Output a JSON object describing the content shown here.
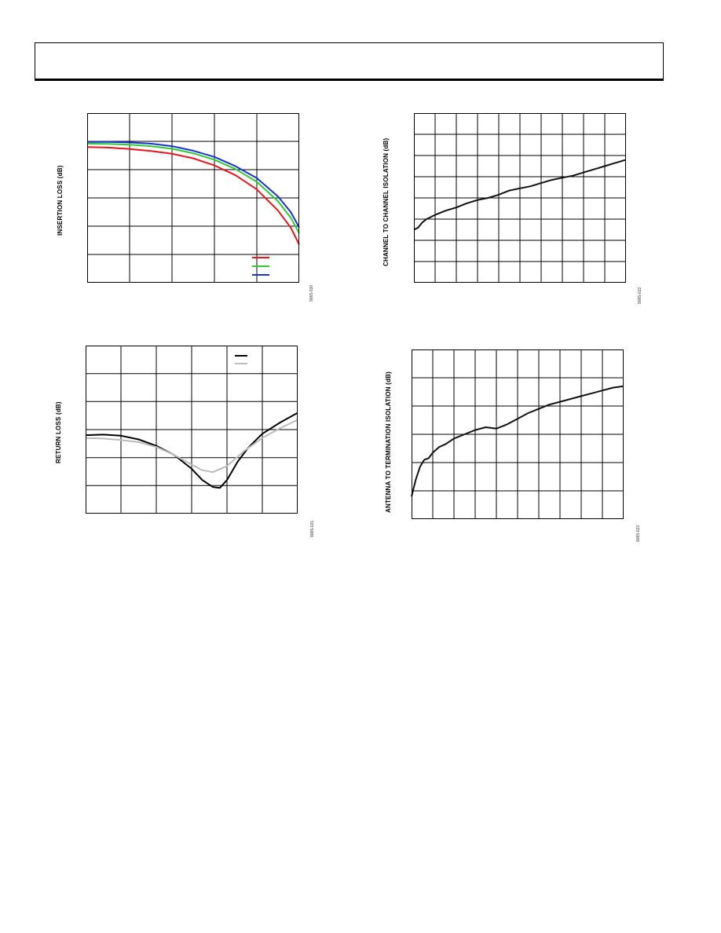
{
  "header": {},
  "chart_data": [
    {
      "type": "line",
      "id": "c1",
      "ylabel": "INSERTION LOSS (dB)",
      "figure_id": "9065-020",
      "xlim": [
        0,
        5
      ],
      "ylim": [
        0,
        6
      ],
      "grid": {
        "x_divisions": 5,
        "y_divisions": 6
      },
      "legend": {
        "placement": "bottom-right",
        "swatches_only": true
      },
      "series": [
        {
          "color": "#e8141c",
          "width": 2,
          "x": [
            0,
            0.5,
            1,
            1.5,
            2,
            2.5,
            3,
            3.5,
            4,
            4.5,
            4.8,
            5
          ],
          "y": [
            4.8,
            4.78,
            4.73,
            4.66,
            4.56,
            4.4,
            4.15,
            3.8,
            3.3,
            2.55,
            1.95,
            1.35
          ]
        },
        {
          "color": "#2ecc2e",
          "width": 2,
          "x": [
            0,
            0.5,
            1,
            1.5,
            2,
            2.5,
            3,
            3.5,
            4,
            4.5,
            4.8,
            5
          ],
          "y": [
            4.92,
            4.91,
            4.88,
            4.83,
            4.74,
            4.58,
            4.35,
            4.02,
            3.57,
            2.88,
            2.3,
            1.75
          ]
        },
        {
          "color": "#1a32d0",
          "width": 2,
          "x": [
            0,
            0.5,
            1,
            1.5,
            2,
            2.5,
            3,
            3.5,
            4,
            4.5,
            4.8,
            5
          ],
          "y": [
            4.98,
            4.98,
            4.96,
            4.92,
            4.83,
            4.67,
            4.45,
            4.12,
            3.7,
            3.05,
            2.5,
            1.95
          ]
        }
      ]
    },
    {
      "type": "line",
      "id": "c2",
      "ylabel": "CHANNEL TO CHANNEL ISOLATION (dB)",
      "figure_id": "9065-022",
      "xlim": [
        0,
        10
      ],
      "ylim": [
        0,
        8
      ],
      "grid": {
        "x_divisions": 10,
        "y_divisions": 8
      },
      "series": [
        {
          "color": "#111111",
          "width": 2,
          "x": [
            0,
            0.2,
            0.4,
            0.6,
            1,
            1.5,
            2,
            2.5,
            3,
            3.5,
            4,
            4.5,
            5,
            5.5,
            6,
            6.5,
            7,
            7.5,
            8,
            8.5,
            9,
            9.5,
            10
          ],
          "y": [
            2.5,
            2.6,
            2.85,
            3.0,
            3.2,
            3.4,
            3.55,
            3.75,
            3.9,
            4.0,
            4.15,
            4.35,
            4.45,
            4.55,
            4.7,
            4.85,
            4.95,
            5.05,
            5.2,
            5.35,
            5.5,
            5.65,
            5.8
          ]
        }
      ]
    },
    {
      "type": "line",
      "id": "c3",
      "ylabel": "RETURN LOSS (dB)",
      "figure_id": "9065-021",
      "xlim": [
        0,
        6
      ],
      "ylim": [
        0,
        6
      ],
      "grid": {
        "x_divisions": 6,
        "y_divisions": 6
      },
      "legend": {
        "placement": "top-right",
        "swatches_only": true
      },
      "series": [
        {
          "color": "#000000",
          "width": 2,
          "x": [
            0,
            0.5,
            1,
            1.5,
            2,
            2.5,
            3,
            3.3,
            3.6,
            3.8,
            4,
            4.3,
            4.6,
            5,
            5.5,
            6
          ],
          "y": [
            2.8,
            2.82,
            2.78,
            2.65,
            2.42,
            2.1,
            1.6,
            1.2,
            0.95,
            0.92,
            1.2,
            1.85,
            2.35,
            2.85,
            3.25,
            3.6
          ]
        },
        {
          "color": "#bbbbbb",
          "width": 2,
          "x": [
            0,
            0.5,
            1,
            1.5,
            2,
            2.5,
            3,
            3.3,
            3.6,
            4,
            4.5,
            5,
            5.5,
            6
          ],
          "y": [
            2.7,
            2.68,
            2.63,
            2.55,
            2.38,
            2.1,
            1.75,
            1.55,
            1.48,
            1.7,
            2.25,
            2.7,
            3.05,
            3.35
          ]
        }
      ]
    },
    {
      "type": "line",
      "id": "c4",
      "ylabel": "ANTENNA TO TERMINATION ISOLATION (dB)",
      "figure_id": "9065-023",
      "xlim": [
        0,
        10
      ],
      "ylim": [
        0,
        6
      ],
      "grid": {
        "x_divisions": 10,
        "y_divisions": 6
      },
      "series": [
        {
          "color": "#111111",
          "width": 2,
          "x": [
            0,
            0.2,
            0.4,
            0.6,
            0.8,
            1,
            1.3,
            1.6,
            2,
            2.5,
            3,
            3.5,
            4,
            4.5,
            5,
            5.5,
            6,
            6.5,
            7,
            7.5,
            8,
            8.5,
            9,
            9.5,
            10
          ],
          "y": [
            0.8,
            1.4,
            1.85,
            2.1,
            2.15,
            2.35,
            2.55,
            2.65,
            2.85,
            3.0,
            3.15,
            3.25,
            3.2,
            3.35,
            3.55,
            3.75,
            3.9,
            4.05,
            4.15,
            4.25,
            4.35,
            4.45,
            4.55,
            4.65,
            4.7
          ]
        }
      ]
    }
  ]
}
